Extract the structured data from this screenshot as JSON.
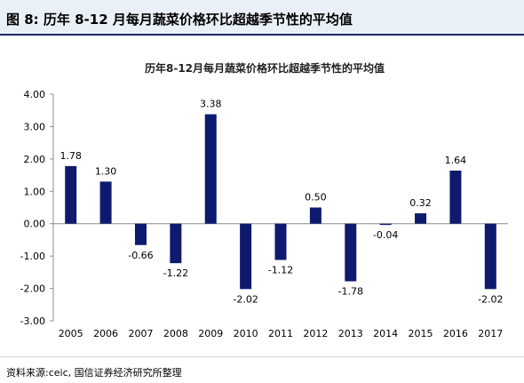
{
  "figure": {
    "title": "图 8:  历年 8-12 月每月蔬菜价格环比超越季节性的平均值",
    "source": "资料来源:ceic, 国信证券经济研究所整理"
  },
  "colors": {
    "bar": "#0d1a6e",
    "header_bg": "#eaf0f7",
    "header_rule": "#1a2a6c"
  },
  "chart_data": {
    "type": "bar",
    "title": "历年8-12月每月蔬菜价格环比超越季节性的平均值",
    "xlabel": "",
    "ylabel": "",
    "categories": [
      "2005",
      "2006",
      "2007",
      "2008",
      "2009",
      "2010",
      "2011",
      "2012",
      "2013",
      "2014",
      "2015",
      "2016",
      "2017"
    ],
    "values": [
      1.78,
      1.3,
      -0.66,
      -1.22,
      3.38,
      -2.02,
      -1.12,
      0.5,
      -1.78,
      -0.04,
      0.32,
      1.64,
      -2.02
    ],
    "value_labels": [
      "1.78",
      "1.30",
      "-0.66",
      "-1.22",
      "3.38",
      "-2.02",
      "-1.12",
      "0.50",
      "-1.78",
      "-0.04",
      "0.32",
      "1.64",
      "-2.02"
    ],
    "ylim": [
      -3.0,
      4.0
    ],
    "yticks": [
      "4.00",
      "3.00",
      "2.00",
      "1.00",
      "0.00",
      "-1.00",
      "-2.00",
      "-3.00"
    ],
    "grid": false,
    "legend": "none"
  }
}
